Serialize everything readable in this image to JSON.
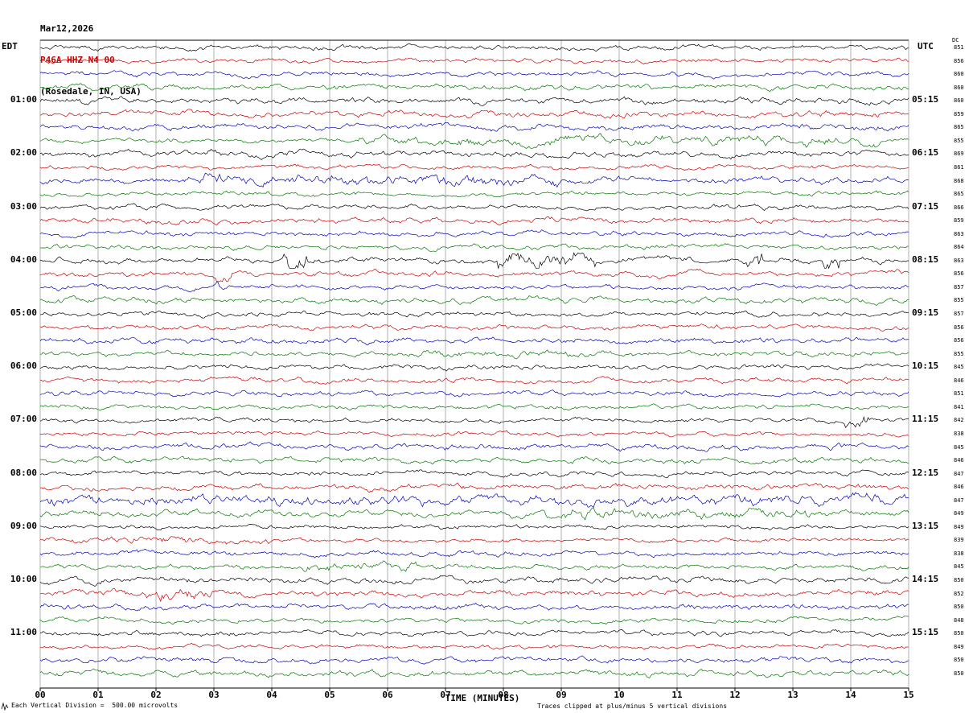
{
  "title": {
    "date": "Mar12,2026",
    "station": "P46A HHZ N4 00",
    "location": "(Rosedale, IN, USA)"
  },
  "axes": {
    "tz_left": "EDT",
    "tz_right": "UTC",
    "dc_header": "DC",
    "x_ticks": [
      "00",
      "01",
      "02",
      "03",
      "04",
      "05",
      "06",
      "07",
      "08",
      "09",
      "10",
      "11",
      "12",
      "13",
      "14",
      "15"
    ],
    "x_label": "TIME (MINUTES)"
  },
  "footer": {
    "left": "Each Vertical Division =  500.00 microvolts",
    "right": "Traces clipped at plus/minus 5 vertical divisions"
  },
  "chart_data": {
    "type": "line",
    "kind": "helicorder-seismogram",
    "minutes_per_line": 15,
    "x_range": [
      0,
      15
    ],
    "lines_per_hour": 4,
    "microvolts_per_division": 500,
    "clip_divisions": 5,
    "trace_colors": [
      "#000000",
      "#cc0000",
      "#0000bb",
      "#007700"
    ],
    "left_hour_labels": [
      "01:00",
      "02:00",
      "03:00",
      "04:00",
      "05:00",
      "06:00",
      "07:00",
      "08:00",
      "09:00",
      "10:00",
      "11:00"
    ],
    "right_hour_labels": [
      "05:15",
      "06:15",
      "07:15",
      "08:15",
      "09:15",
      "10:15",
      "11:15",
      "12:15",
      "13:15",
      "14:15",
      "15:15"
    ],
    "dc_values": [
      851,
      856,
      860,
      860,
      860,
      859,
      865,
      855,
      869,
      861,
      868,
      865,
      866,
      859,
      863,
      864,
      863,
      856,
      857,
      855,
      857,
      856,
      856,
      855,
      845,
      846,
      851,
      841,
      842,
      838,
      845,
      846,
      847,
      846,
      847,
      849,
      849,
      839,
      838,
      845,
      850,
      852,
      850,
      848,
      850,
      849,
      850,
      850
    ],
    "elevated_segments": [
      {
        "row": 7,
        "from_min": 5.5,
        "to_min": 14.5,
        "gain": 2.1
      },
      {
        "row": 10,
        "from_min": 2.5,
        "to_min": 9.0,
        "gain": 2.0
      },
      {
        "row": 16,
        "from_min": 4.2,
        "to_min": 4.6,
        "gain": 5.0
      },
      {
        "row": 16,
        "from_min": 7.9,
        "to_min": 9.6,
        "gain": 3.0
      },
      {
        "row": 16,
        "from_min": 12.2,
        "to_min": 12.5,
        "gain": 4.2
      },
      {
        "row": 16,
        "from_min": 13.5,
        "to_min": 13.8,
        "gain": 4.2
      },
      {
        "row": 17,
        "from_min": 3.0,
        "to_min": 3.3,
        "gain": 3.8
      },
      {
        "row": 18,
        "from_min": 3.0,
        "to_min": 3.2,
        "gain": 2.5
      },
      {
        "row": 28,
        "from_min": 13.9,
        "to_min": 14.3,
        "gain": 3.2
      },
      {
        "row": 34,
        "from_min": 0,
        "to_min": 15,
        "gain": 1.9
      },
      {
        "row": 35,
        "from_min": 8.5,
        "to_min": 13.5,
        "gain": 1.7
      },
      {
        "row": 37,
        "from_min": 0,
        "to_min": 4.0,
        "gain": 1.7
      },
      {
        "row": 39,
        "from_min": 4.5,
        "to_min": 6.5,
        "gain": 2.0
      },
      {
        "row": 41,
        "from_min": 1.8,
        "to_min": 3.2,
        "gain": 2.4
      },
      {
        "row": 23,
        "from_min": 6.5,
        "to_min": 9.5,
        "gain": 1.5
      }
    ]
  }
}
